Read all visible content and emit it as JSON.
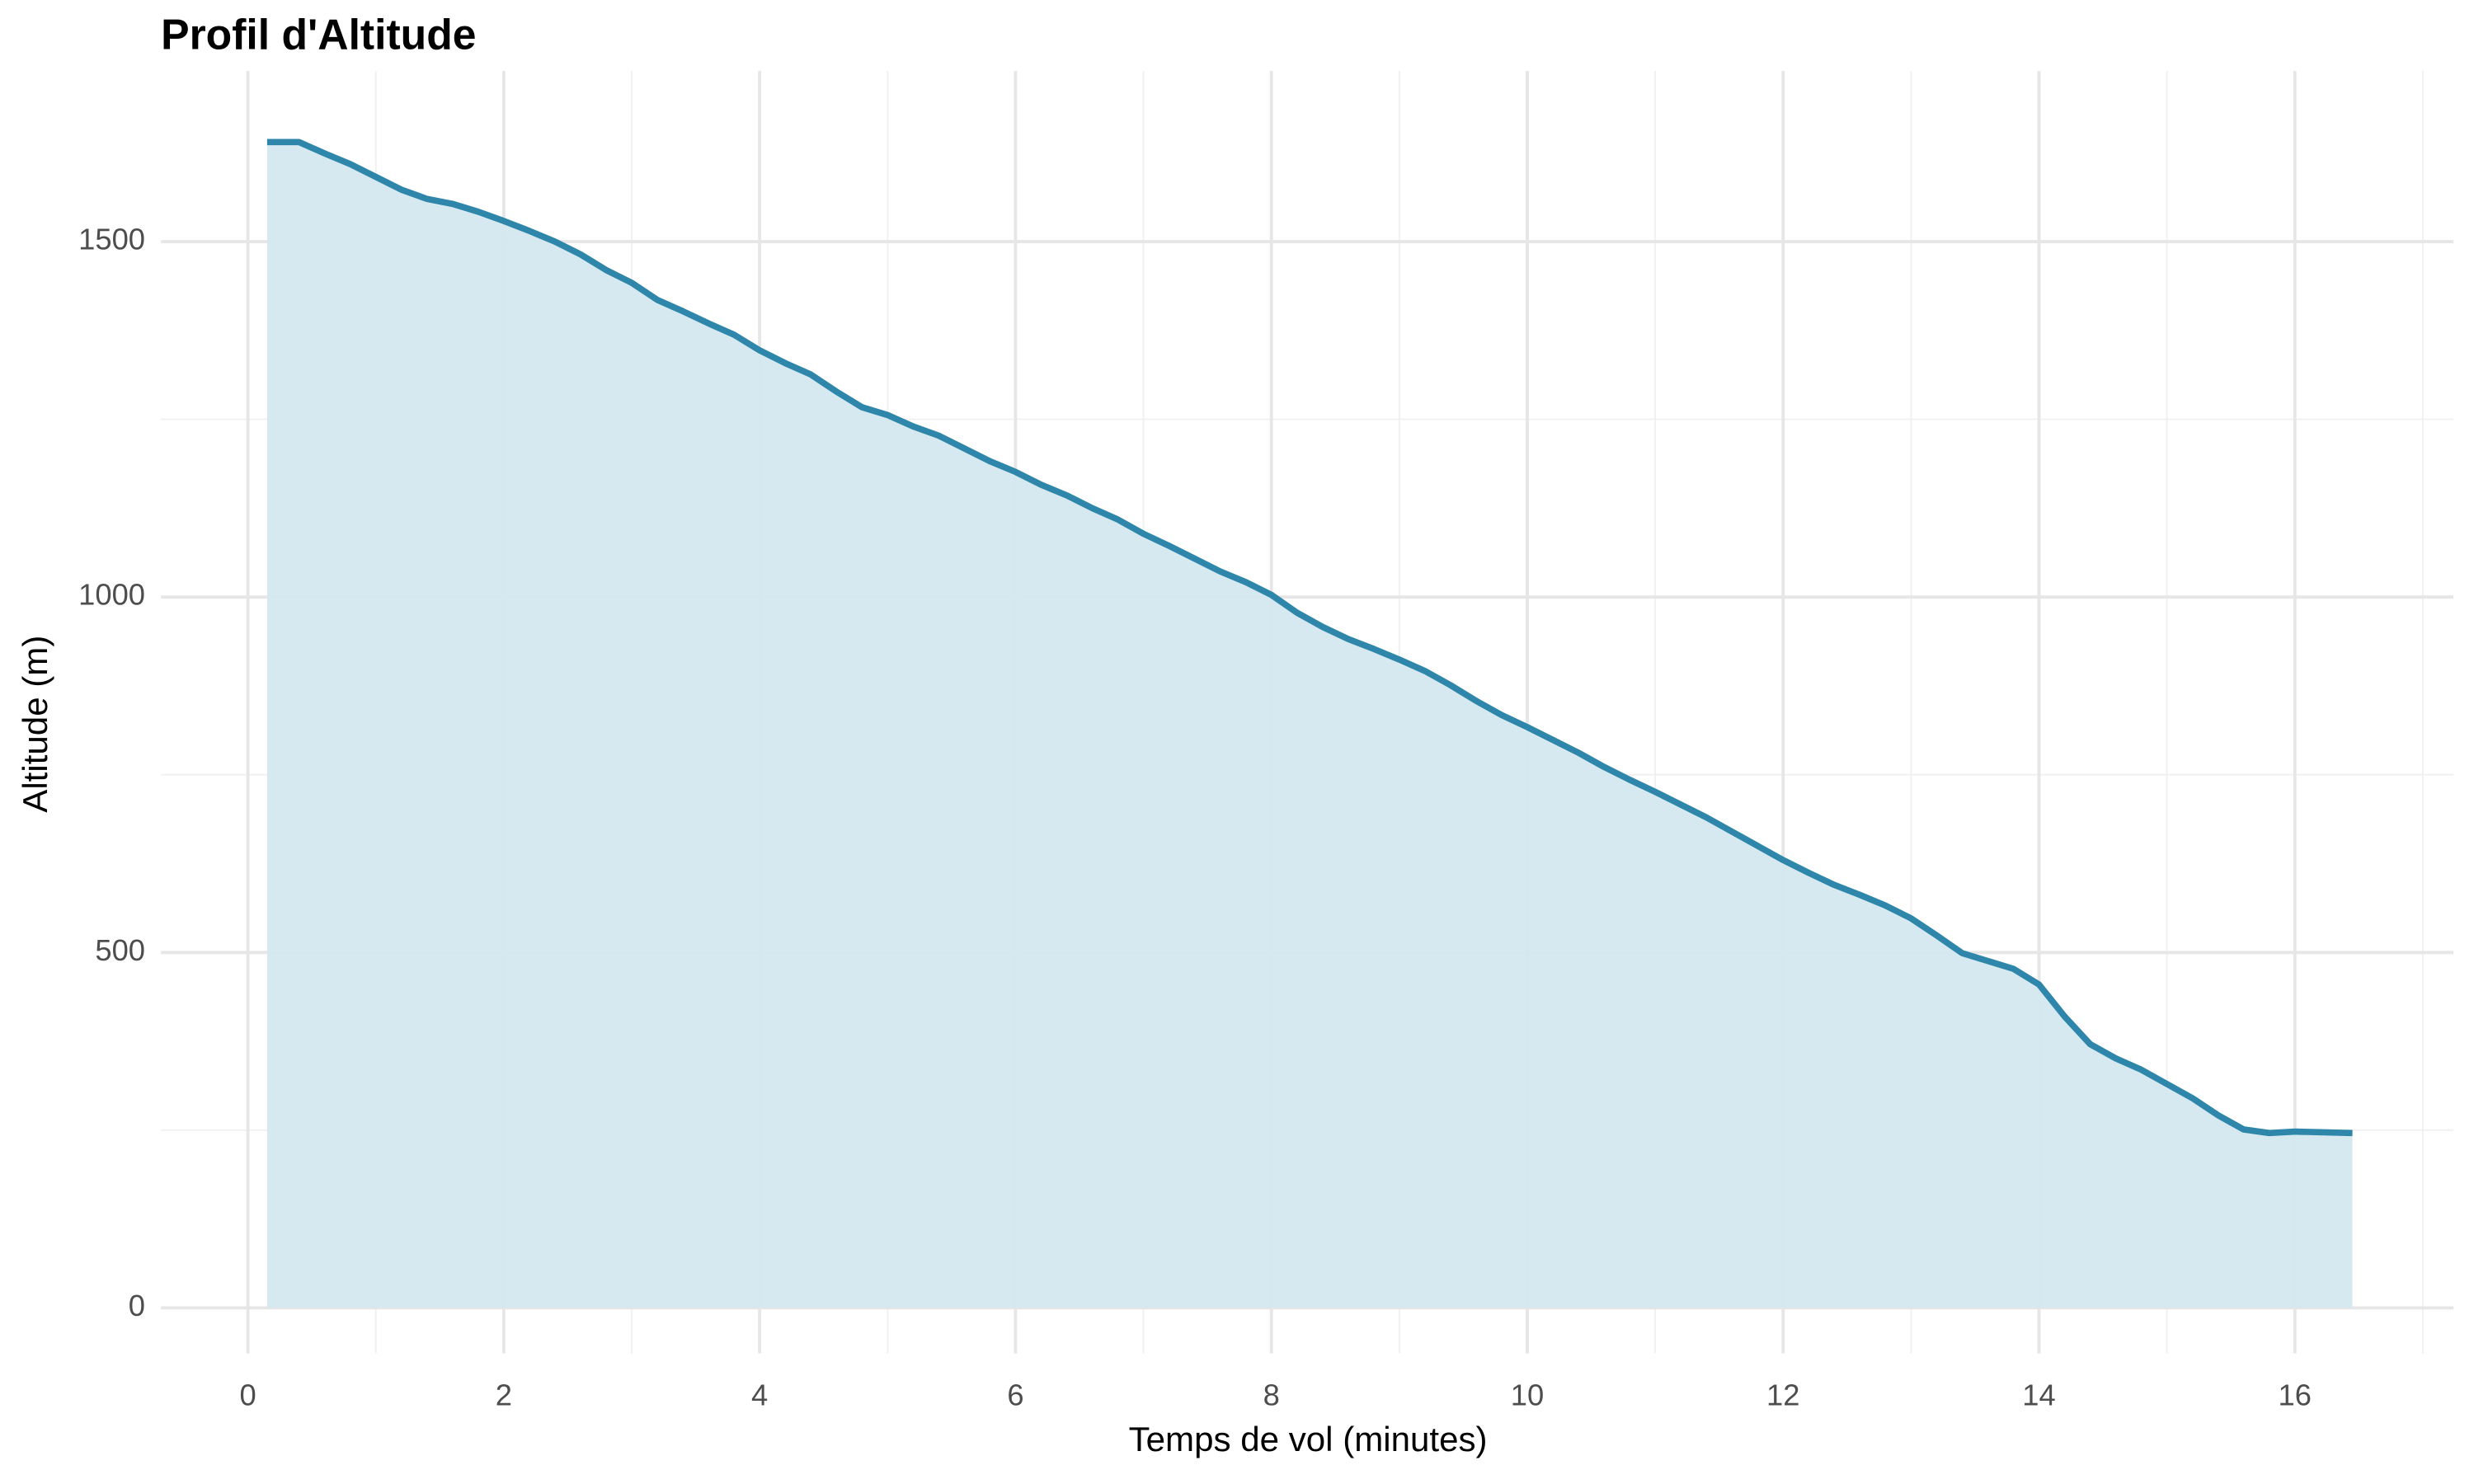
{
  "chart_data": {
    "type": "area",
    "title": "Profil d'Altitude",
    "x_label": "Temps de vol (minutes)",
    "y_label": "Altitude (m)",
    "x": [
      0.15,
      0.4,
      0.6,
      0.8,
      1.0,
      1.2,
      1.4,
      1.6,
      1.8,
      2.0,
      2.2,
      2.4,
      2.6,
      2.8,
      3.0,
      3.2,
      3.4,
      3.6,
      3.8,
      4.0,
      4.2,
      4.4,
      4.6,
      4.8,
      5.0,
      5.2,
      5.4,
      5.6,
      5.8,
      6.0,
      6.2,
      6.4,
      6.6,
      6.8,
      7.0,
      7.2,
      7.4,
      7.6,
      7.8,
      8.0,
      8.2,
      8.4,
      8.6,
      8.8,
      9.0,
      9.2,
      9.4,
      9.6,
      9.8,
      10.0,
      10.2,
      10.4,
      10.6,
      10.8,
      11.0,
      11.2,
      11.4,
      11.6,
      11.8,
      12.0,
      12.2,
      12.4,
      12.6,
      12.8,
      13.0,
      13.2,
      13.4,
      13.6,
      13.8,
      14.0,
      14.2,
      14.4,
      14.6,
      14.8,
      15.0,
      15.2,
      15.4,
      15.6,
      15.8,
      16.0,
      16.45
    ],
    "values": [
      1640,
      1640,
      1624,
      1609,
      1591,
      1573,
      1560,
      1553,
      1542,
      1529,
      1515,
      1500,
      1482,
      1460,
      1442,
      1418,
      1402,
      1385,
      1369,
      1347,
      1329,
      1313,
      1289,
      1267,
      1256,
      1240,
      1227,
      1209,
      1191,
      1176,
      1158,
      1143,
      1125,
      1109,
      1089,
      1072,
      1054,
      1036,
      1021,
      1003,
      978,
      958,
      941,
      927,
      912,
      896,
      876,
      854,
      834,
      817,
      799,
      781,
      761,
      743,
      726,
      708,
      690,
      670,
      650,
      630,
      612,
      595,
      581,
      566,
      548,
      524,
      499,
      488,
      477,
      455,
      410,
      371,
      351,
      335,
      315,
      295,
      271,
      251,
      246,
      248,
      246
    ],
    "color": "#2e86ab",
    "fill_color": "#d4e7ef",
    "xlim": [
      -0.68,
      17.24
    ],
    "ylim": [
      -64,
      1740
    ],
    "xticks": [
      0,
      2,
      4,
      6,
      8,
      10,
      12,
      14,
      16
    ],
    "yticks": [
      0,
      500,
      1000,
      1500
    ],
    "x_minor_ticks": [
      1,
      3,
      5,
      7,
      9,
      11,
      13,
      15,
      17
    ],
    "y_minor_ticks": [
      250,
      750,
      1250
    ],
    "grid": true
  }
}
